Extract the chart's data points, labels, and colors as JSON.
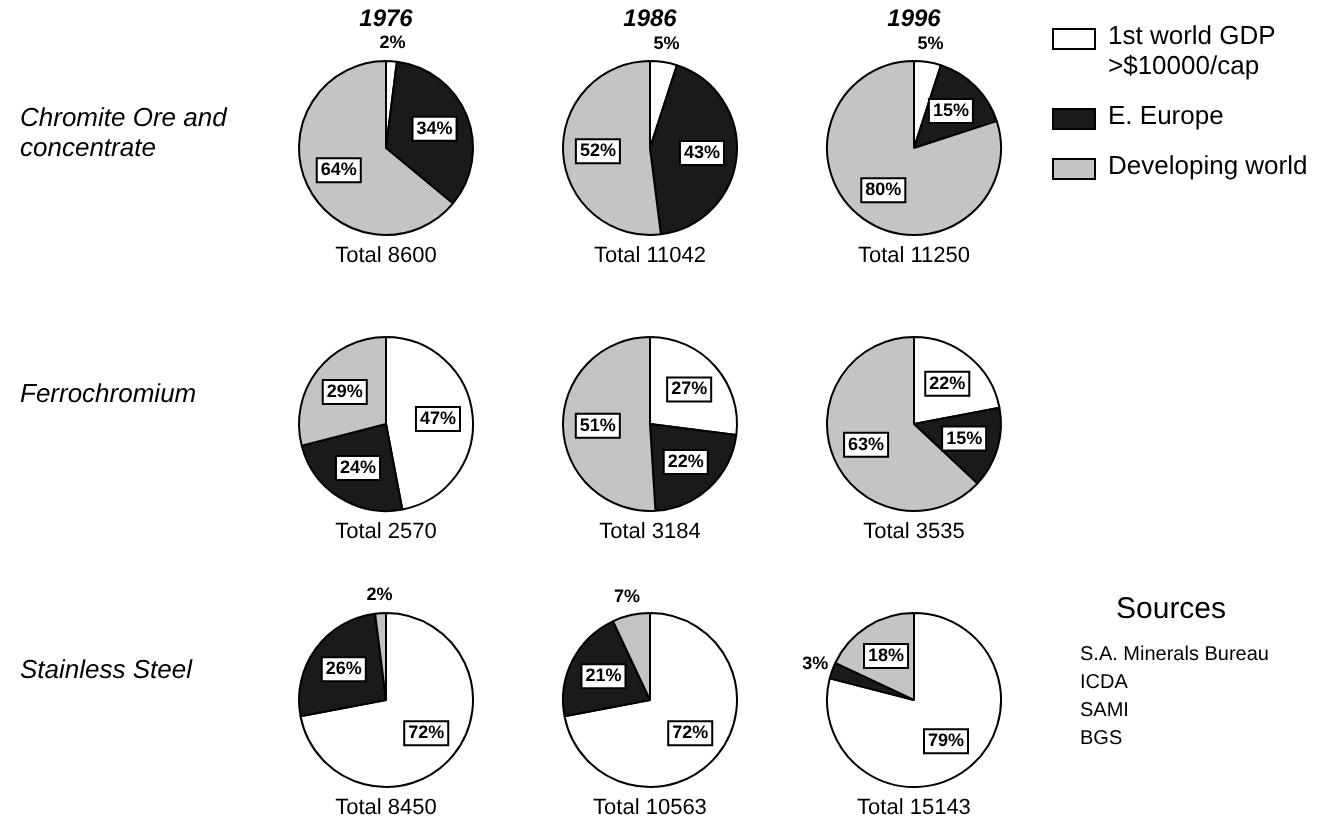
{
  "chart_data": [
    {
      "type": "pie",
      "title": "1976",
      "ylabel": "Chromite Ore and concentrate",
      "xlabel": "Total 8600",
      "categories": [
        null,
        null,
        null
      ],
      "values": [
        2,
        34,
        64
      ],
      "colors": [
        "#ffffff",
        "#1a1a1a",
        "#c4c4c4"
      ],
      "value_labels": [
        "2%",
        "34%",
        "64%"
      ]
    },
    {
      "type": "pie",
      "title": "1986",
      "xlabel": "Total 11042",
      "categories": [
        null,
        null,
        null
      ],
      "values": [
        5,
        43,
        52
      ],
      "colors": [
        "#ffffff",
        "#1a1a1a",
        "#c4c4c4"
      ],
      "value_labels": [
        "5%",
        "43%",
        "52%"
      ]
    },
    {
      "type": "pie",
      "title": "1996",
      "xlabel": "Total 11250",
      "legend": "right",
      "categories": [
        "1st world GDP >$10000/cap",
        "E. Europe",
        "Developing world"
      ],
      "values": [
        5,
        15,
        80
      ],
      "colors": [
        "#ffffff",
        "#1a1a1a",
        "#c4c4c4"
      ],
      "value_labels": [
        "5%",
        "15%",
        "80%"
      ]
    },
    {
      "type": "pie",
      "ylabel": "Ferrochromium",
      "xlabel": "Total 2570",
      "categories": [
        null,
        null,
        null
      ],
      "values": [
        47,
        24,
        29
      ],
      "colors": [
        "#ffffff",
        "#1a1a1a",
        "#c4c4c4"
      ],
      "value_labels": [
        "47%",
        "24%",
        "29%"
      ]
    },
    {
      "type": "pie",
      "xlabel": "Total 3184",
      "categories": [
        null,
        null,
        null
      ],
      "values": [
        27,
        22,
        51
      ],
      "colors": [
        "#ffffff",
        "#1a1a1a",
        "#c4c4c4"
      ],
      "value_labels": [
        "27%",
        "22%",
        "51%"
      ]
    },
    {
      "type": "pie",
      "xlabel": "Total 3535",
      "categories": [
        null,
        null,
        null
      ],
      "values": [
        22,
        15,
        63
      ],
      "colors": [
        "#ffffff",
        "#1a1a1a",
        "#c4c4c4"
      ],
      "value_labels": [
        "22%",
        "15%",
        "63%"
      ]
    },
    {
      "type": "pie",
      "ylabel": "Stainless Steel",
      "xlabel": "Total 8450",
      "categories": [
        null,
        null,
        null
      ],
      "values": [
        72,
        26,
        2
      ],
      "colors": [
        "#ffffff",
        "#1a1a1a",
        "#c4c4c4"
      ],
      "value_labels": [
        "72%",
        "26%",
        "2%"
      ]
    },
    {
      "type": "pie",
      "xlabel": "Total 10563",
      "categories": [
        null,
        null,
        null
      ],
      "values": [
        72,
        21,
        7
      ],
      "colors": [
        "#ffffff",
        "#1a1a1a",
        "#c4c4c4"
      ],
      "value_labels": [
        "72%",
        "21%",
        "7%"
      ]
    },
    {
      "type": "pie",
      "xlabel": "Total 15143",
      "categories": [
        null,
        null,
        null
      ],
      "values": [
        79,
        3,
        18
      ],
      "colors": [
        "#ffffff",
        "#1a1a1a",
        "#c4c4c4"
      ],
      "value_labels": [
        "79%",
        "3%",
        "18%"
      ]
    },
    {
      "type": "other",
      "title": "Sources",
      "annotations": [
        "S.A. Minerals Bureau",
        "ICDA",
        "SAMI",
        "BGS"
      ]
    }
  ]
}
